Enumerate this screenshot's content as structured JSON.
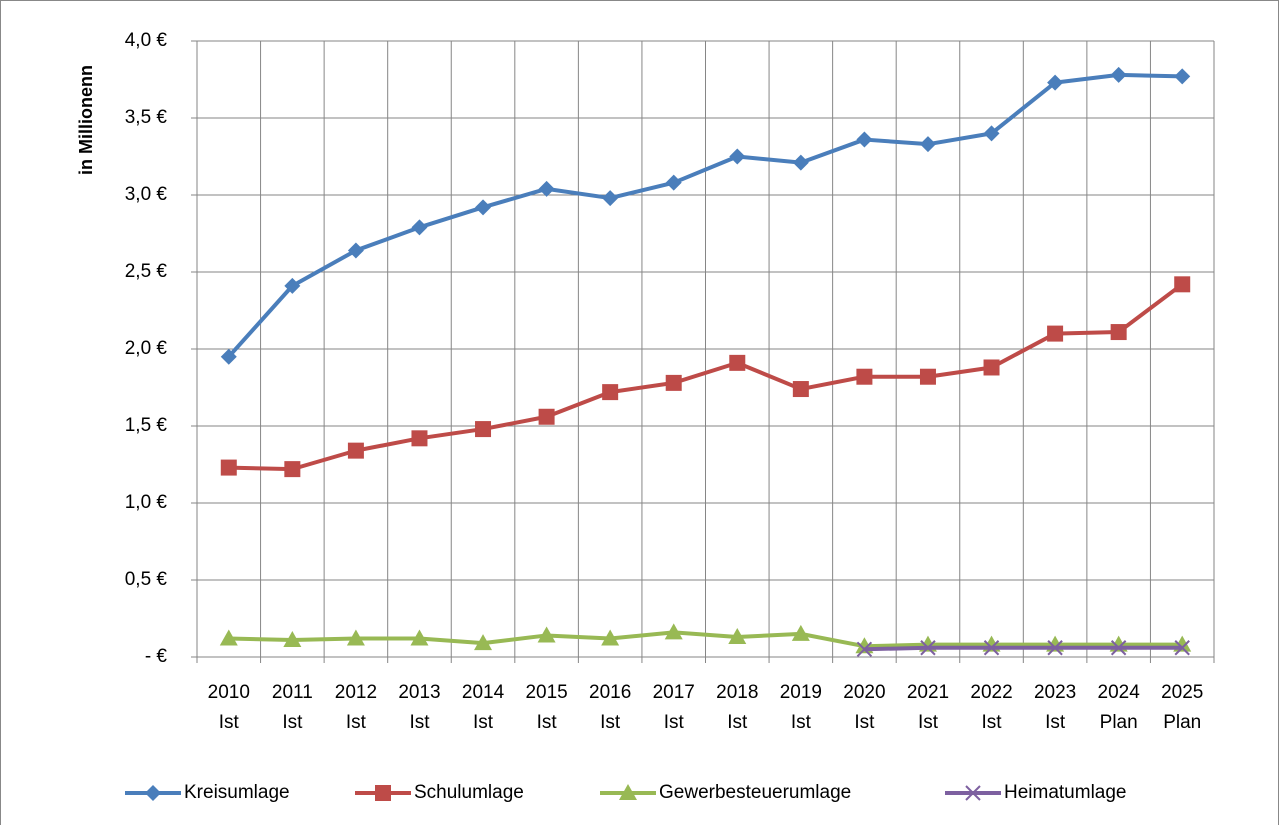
{
  "chart_data": {
    "type": "line",
    "y_label": "in Millionenn",
    "categories": [
      [
        "2010",
        "Ist"
      ],
      [
        "2011",
        "Ist"
      ],
      [
        "2012",
        "Ist"
      ],
      [
        "2013",
        "Ist"
      ],
      [
        "2014",
        "Ist"
      ],
      [
        "2015",
        "Ist"
      ],
      [
        "2016",
        "Ist"
      ],
      [
        "2017",
        "Ist"
      ],
      [
        "2018",
        "Ist"
      ],
      [
        "2019",
        "Ist"
      ],
      [
        "2020",
        "Ist"
      ],
      [
        "2021",
        "Ist"
      ],
      [
        "2022",
        "Ist"
      ],
      [
        "2023",
        "Ist"
      ],
      [
        "2024",
        "Plan"
      ],
      [
        "2025",
        "Plan"
      ]
    ],
    "series": [
      {
        "name": "Kreisumlage",
        "color": "#4a7ebb",
        "marker": "diamond",
        "values": [
          1.95,
          2.41,
          2.64,
          2.79,
          2.92,
          3.04,
          2.98,
          3.08,
          3.25,
          3.21,
          3.36,
          3.33,
          3.4,
          3.73,
          3.78,
          3.77
        ]
      },
      {
        "name": "Schulumlage",
        "color": "#be4b48",
        "marker": "square",
        "values": [
          1.23,
          1.22,
          1.34,
          1.42,
          1.48,
          1.56,
          1.72,
          1.78,
          1.91,
          1.74,
          1.82,
          1.82,
          1.88,
          2.1,
          2.11,
          2.42
        ]
      },
      {
        "name": "Gewerbesteuerumlage",
        "color": "#98b954",
        "marker": "triangle",
        "values": [
          0.12,
          0.11,
          0.12,
          0.12,
          0.09,
          0.14,
          0.12,
          0.16,
          0.13,
          0.15,
          0.07,
          0.08,
          0.08,
          0.08,
          0.08,
          0.08
        ]
      },
      {
        "name": "Heimatumlage",
        "color": "#7d60a0",
        "marker": "x",
        "values": [
          null,
          null,
          null,
          null,
          null,
          null,
          null,
          null,
          null,
          null,
          0.05,
          0.06,
          0.06,
          0.06,
          0.06,
          0.06
        ]
      }
    ],
    "ylim": [
      0,
      4
    ],
    "yticks": [
      {
        "value": 0,
        "label": "-  €"
      },
      {
        "value": 0.5,
        "label": "0,5 €"
      },
      {
        "value": 1,
        "label": "1,0 €"
      },
      {
        "value": 1.5,
        "label": "1,5 €"
      },
      {
        "value": 2,
        "label": "2,0 €"
      },
      {
        "value": 2.5,
        "label": "2,5 €"
      },
      {
        "value": 3,
        "label": "3,0 €"
      },
      {
        "value": 3.5,
        "label": "3,5 €"
      },
      {
        "value": 4,
        "label": "4,0 €"
      }
    ],
    "grid": true,
    "legend": "bottom"
  }
}
